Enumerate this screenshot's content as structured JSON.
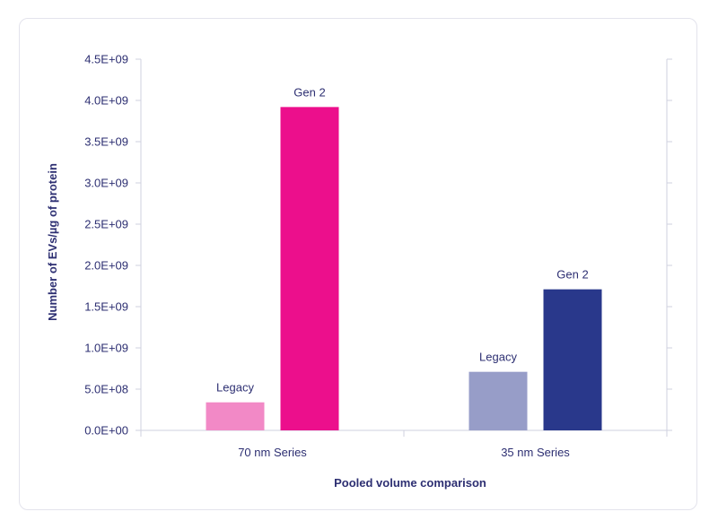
{
  "chart_data": {
    "type": "bar",
    "categories": [
      "70 nm Series",
      "35 nm Series"
    ],
    "bars": [
      {
        "category": "70 nm Series",
        "label": "Legacy",
        "value": 340000000,
        "color": "#f289c6"
      },
      {
        "category": "70 nm Series",
        "label": "Gen 2",
        "value": 3920000000,
        "color": "#ec0f8c"
      },
      {
        "category": "35 nm Series",
        "label": "Legacy",
        "value": 710000000,
        "color": "#979dc8"
      },
      {
        "category": "35 nm Series",
        "label": "Gen 2",
        "value": 1710000000,
        "color": "#29388b"
      }
    ],
    "y_ticks": [
      "0.0E+00",
      "5.0E+08",
      "1.0E+09",
      "1.5E+09",
      "2.0E+09",
      "2.5E+09",
      "3.0E+09",
      "3.5E+09",
      "4.0E+09",
      "4.5E+09"
    ],
    "ylim": [
      0,
      4500000000
    ],
    "xlabel": "Pooled volume comparison",
    "ylabel": "Number of EVs/µg of protein",
    "grid": false,
    "legend": "none"
  }
}
